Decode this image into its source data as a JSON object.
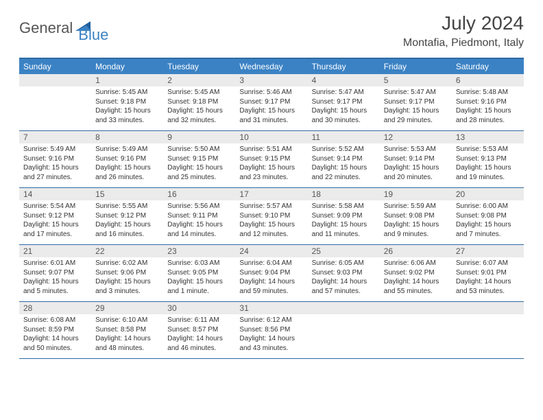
{
  "logo": {
    "text1": "General",
    "text2": "Blue"
  },
  "title": "July 2024",
  "location": "Montafia, Piedmont, Italy",
  "colors": {
    "header_bg": "#3b82c4",
    "header_text": "#ffffff",
    "border": "#2f6aa3",
    "daynum_bg": "#ebebeb",
    "text": "#333333"
  },
  "weekdays": [
    "Sunday",
    "Monday",
    "Tuesday",
    "Wednesday",
    "Thursday",
    "Friday",
    "Saturday"
  ],
  "weeks": [
    [
      {
        "n": "",
        "lines": []
      },
      {
        "n": "1",
        "lines": [
          "Sunrise: 5:45 AM",
          "Sunset: 9:18 PM",
          "Daylight: 15 hours",
          "and 33 minutes."
        ]
      },
      {
        "n": "2",
        "lines": [
          "Sunrise: 5:45 AM",
          "Sunset: 9:18 PM",
          "Daylight: 15 hours",
          "and 32 minutes."
        ]
      },
      {
        "n": "3",
        "lines": [
          "Sunrise: 5:46 AM",
          "Sunset: 9:17 PM",
          "Daylight: 15 hours",
          "and 31 minutes."
        ]
      },
      {
        "n": "4",
        "lines": [
          "Sunrise: 5:47 AM",
          "Sunset: 9:17 PM",
          "Daylight: 15 hours",
          "and 30 minutes."
        ]
      },
      {
        "n": "5",
        "lines": [
          "Sunrise: 5:47 AM",
          "Sunset: 9:17 PM",
          "Daylight: 15 hours",
          "and 29 minutes."
        ]
      },
      {
        "n": "6",
        "lines": [
          "Sunrise: 5:48 AM",
          "Sunset: 9:16 PM",
          "Daylight: 15 hours",
          "and 28 minutes."
        ]
      }
    ],
    [
      {
        "n": "7",
        "lines": [
          "Sunrise: 5:49 AM",
          "Sunset: 9:16 PM",
          "Daylight: 15 hours",
          "and 27 minutes."
        ]
      },
      {
        "n": "8",
        "lines": [
          "Sunrise: 5:49 AM",
          "Sunset: 9:16 PM",
          "Daylight: 15 hours",
          "and 26 minutes."
        ]
      },
      {
        "n": "9",
        "lines": [
          "Sunrise: 5:50 AM",
          "Sunset: 9:15 PM",
          "Daylight: 15 hours",
          "and 25 minutes."
        ]
      },
      {
        "n": "10",
        "lines": [
          "Sunrise: 5:51 AM",
          "Sunset: 9:15 PM",
          "Daylight: 15 hours",
          "and 23 minutes."
        ]
      },
      {
        "n": "11",
        "lines": [
          "Sunrise: 5:52 AM",
          "Sunset: 9:14 PM",
          "Daylight: 15 hours",
          "and 22 minutes."
        ]
      },
      {
        "n": "12",
        "lines": [
          "Sunrise: 5:53 AM",
          "Sunset: 9:14 PM",
          "Daylight: 15 hours",
          "and 20 minutes."
        ]
      },
      {
        "n": "13",
        "lines": [
          "Sunrise: 5:53 AM",
          "Sunset: 9:13 PM",
          "Daylight: 15 hours",
          "and 19 minutes."
        ]
      }
    ],
    [
      {
        "n": "14",
        "lines": [
          "Sunrise: 5:54 AM",
          "Sunset: 9:12 PM",
          "Daylight: 15 hours",
          "and 17 minutes."
        ]
      },
      {
        "n": "15",
        "lines": [
          "Sunrise: 5:55 AM",
          "Sunset: 9:12 PM",
          "Daylight: 15 hours",
          "and 16 minutes."
        ]
      },
      {
        "n": "16",
        "lines": [
          "Sunrise: 5:56 AM",
          "Sunset: 9:11 PM",
          "Daylight: 15 hours",
          "and 14 minutes."
        ]
      },
      {
        "n": "17",
        "lines": [
          "Sunrise: 5:57 AM",
          "Sunset: 9:10 PM",
          "Daylight: 15 hours",
          "and 12 minutes."
        ]
      },
      {
        "n": "18",
        "lines": [
          "Sunrise: 5:58 AM",
          "Sunset: 9:09 PM",
          "Daylight: 15 hours",
          "and 11 minutes."
        ]
      },
      {
        "n": "19",
        "lines": [
          "Sunrise: 5:59 AM",
          "Sunset: 9:08 PM",
          "Daylight: 15 hours",
          "and 9 minutes."
        ]
      },
      {
        "n": "20",
        "lines": [
          "Sunrise: 6:00 AM",
          "Sunset: 9:08 PM",
          "Daylight: 15 hours",
          "and 7 minutes."
        ]
      }
    ],
    [
      {
        "n": "21",
        "lines": [
          "Sunrise: 6:01 AM",
          "Sunset: 9:07 PM",
          "Daylight: 15 hours",
          "and 5 minutes."
        ]
      },
      {
        "n": "22",
        "lines": [
          "Sunrise: 6:02 AM",
          "Sunset: 9:06 PM",
          "Daylight: 15 hours",
          "and 3 minutes."
        ]
      },
      {
        "n": "23",
        "lines": [
          "Sunrise: 6:03 AM",
          "Sunset: 9:05 PM",
          "Daylight: 15 hours",
          "and 1 minute."
        ]
      },
      {
        "n": "24",
        "lines": [
          "Sunrise: 6:04 AM",
          "Sunset: 9:04 PM",
          "Daylight: 14 hours",
          "and 59 minutes."
        ]
      },
      {
        "n": "25",
        "lines": [
          "Sunrise: 6:05 AM",
          "Sunset: 9:03 PM",
          "Daylight: 14 hours",
          "and 57 minutes."
        ]
      },
      {
        "n": "26",
        "lines": [
          "Sunrise: 6:06 AM",
          "Sunset: 9:02 PM",
          "Daylight: 14 hours",
          "and 55 minutes."
        ]
      },
      {
        "n": "27",
        "lines": [
          "Sunrise: 6:07 AM",
          "Sunset: 9:01 PM",
          "Daylight: 14 hours",
          "and 53 minutes."
        ]
      }
    ],
    [
      {
        "n": "28",
        "lines": [
          "Sunrise: 6:08 AM",
          "Sunset: 8:59 PM",
          "Daylight: 14 hours",
          "and 50 minutes."
        ]
      },
      {
        "n": "29",
        "lines": [
          "Sunrise: 6:10 AM",
          "Sunset: 8:58 PM",
          "Daylight: 14 hours",
          "and 48 minutes."
        ]
      },
      {
        "n": "30",
        "lines": [
          "Sunrise: 6:11 AM",
          "Sunset: 8:57 PM",
          "Daylight: 14 hours",
          "and 46 minutes."
        ]
      },
      {
        "n": "31",
        "lines": [
          "Sunrise: 6:12 AM",
          "Sunset: 8:56 PM",
          "Daylight: 14 hours",
          "and 43 minutes."
        ]
      },
      {
        "n": "",
        "lines": []
      },
      {
        "n": "",
        "lines": []
      },
      {
        "n": "",
        "lines": []
      }
    ]
  ]
}
